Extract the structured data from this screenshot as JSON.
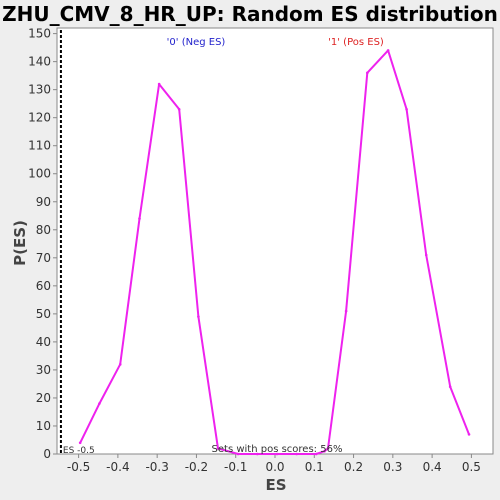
{
  "chart_data": {
    "type": "line",
    "title": "ZHU_CMV_8_HR_UP: Random ES distribution",
    "xlabel": "ES",
    "ylabel": "P(ES)",
    "xlim": [
      -0.555,
      0.555
    ],
    "ylim": [
      0,
      152
    ],
    "xticks": [
      "-0.5",
      "-0.4",
      "-0.3",
      "-0.2",
      "-0.1",
      "0.0",
      "0.1",
      "0.2",
      "0.3",
      "0.4",
      "0.5"
    ],
    "yticks": [
      "0",
      "10",
      "20",
      "30",
      "40",
      "50",
      "60",
      "70",
      "80",
      "90",
      "100",
      "110",
      "120",
      "130",
      "140",
      "150"
    ],
    "grid": false,
    "series": [
      {
        "color": "#ee22ee",
        "x": [
          -0.496,
          -0.447,
          -0.394,
          -0.345,
          -0.295,
          -0.244,
          -0.195,
          -0.145,
          -0.094,
          -0.045,
          0.005,
          0.055,
          0.105,
          0.126,
          0.135,
          0.181,
          0.235,
          0.288,
          0.335,
          0.385,
          0.446,
          0.494
        ],
        "y": [
          4,
          18,
          32,
          84,
          132,
          123,
          49,
          2,
          0,
          0,
          0,
          0,
          0,
          1,
          2,
          51,
          136,
          144,
          123,
          71,
          24,
          7
        ]
      }
    ],
    "annotations": {
      "neg_label": "'0' (Neg ES)",
      "neg_color": "#2222cc",
      "pos_label": "'1' (Pos ES)",
      "pos_color": "#dd2222",
      "pos_scores": "Sets with pos scores: 56%",
      "es_marker": "ES -0.5",
      "es_marker_value": -0.545
    }
  }
}
